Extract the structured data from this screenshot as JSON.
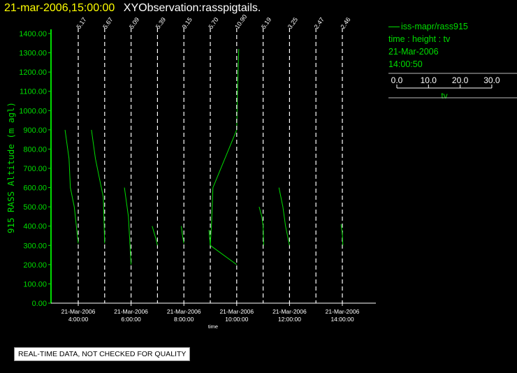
{
  "header": {
    "timestamp": "21-mar-2006,15:00:00",
    "observation": "XYObservation:rasspigtails."
  },
  "legend": {
    "series_name": "iss-mapr/rass915",
    "description": "time : height : tv",
    "date": "21-Mar-2006",
    "time": "14:00:50",
    "scale_ticks": [
      "0.0",
      "10.0",
      "20.0",
      "30.0"
    ],
    "scale_label": "tv"
  },
  "footer": {
    "disclaimer": "REAL-TIME DATA, NOT CHECKED FOR QUALITY"
  },
  "colors": {
    "data": "#00dd00",
    "axis": "#ffffff",
    "ylabel": "#00dd00",
    "header_time": "#ffff00"
  },
  "chart_data": {
    "type": "line",
    "ylabel": "915 RASS Altitude (m agl)",
    "xlabel": "time",
    "ylim": [
      0,
      1400
    ],
    "yticks": [
      "0.00",
      "100.00",
      "200.00",
      "300.00",
      "400.00",
      "500.00",
      "600.00",
      "700.00",
      "800.00",
      "900.00",
      "1000.00",
      "1100.00",
      "1200.00",
      "1300.00",
      "1400.00"
    ],
    "xlim_hours": [
      2.0,
      15.25
    ],
    "xticks": [
      {
        "hour": 4,
        "date": "21-Mar-2006",
        "time": "4:00:00"
      },
      {
        "hour": 6,
        "date": "21-Mar-2006",
        "time": "6:00:00"
      },
      {
        "hour": 8,
        "date": "21-Mar-2006",
        "time": "8:00:00"
      },
      {
        "hour": 10,
        "date": "21-Mar-2006",
        "time": "10:00:00"
      },
      {
        "hour": 12,
        "date": "21-Mar-2006",
        "time": "12:00:00"
      },
      {
        "hour": 14,
        "date": "21-Mar-2006",
        "time": "14:00:00"
      }
    ],
    "profiles": [
      {
        "hour": 4.0,
        "label": "5.17",
        "line": [
          [
            3.5,
            900
          ],
          [
            3.65,
            750
          ],
          [
            3.7,
            600
          ],
          [
            3.85,
            500
          ],
          [
            4.0,
            310
          ]
        ]
      },
      {
        "hour": 5.0,
        "label": "5.67",
        "line": [
          [
            4.5,
            900
          ],
          [
            4.65,
            750
          ],
          [
            4.8,
            650
          ],
          [
            4.95,
            550
          ],
          [
            5.0,
            310
          ]
        ]
      },
      {
        "hour": 6.0,
        "label": "5.09",
        "line": [
          [
            5.75,
            600
          ],
          [
            5.9,
            450
          ],
          [
            6.0,
            200
          ]
        ]
      },
      {
        "hour": 7.0,
        "label": "5.39",
        "line": [
          [
            6.8,
            400
          ],
          [
            6.95,
            330
          ],
          [
            7.0,
            300
          ]
        ]
      },
      {
        "hour": 8.0,
        "label": "9.15",
        "line": [
          [
            7.9,
            400
          ],
          [
            7.95,
            350
          ],
          [
            8.0,
            310
          ]
        ]
      },
      {
        "hour": 9.0,
        "label": "5.70",
        "line": [
          [
            8.95,
            380
          ],
          [
            9.0,
            300
          ],
          [
            9.05,
            420
          ],
          [
            9.1,
            600
          ],
          [
            10.0,
            900
          ],
          [
            10.02,
            1050
          ],
          [
            10.05,
            1200
          ],
          [
            10.08,
            1320
          ]
        ],
        "extra": [
          [
            9.0,
            300
          ],
          [
            10.0,
            200
          ]
        ]
      },
      {
        "hour": 10.0,
        "label": "10.90"
      },
      {
        "hour": 11.0,
        "label": "5.19",
        "line": [
          [
            10.85,
            500
          ],
          [
            10.95,
            450
          ],
          [
            11.0,
            400
          ],
          [
            11.02,
            300
          ]
        ]
      },
      {
        "hour": 12.0,
        "label": "3.25",
        "line": [
          [
            11.6,
            600
          ],
          [
            11.75,
            500
          ],
          [
            11.85,
            400
          ],
          [
            12.0,
            300
          ]
        ]
      },
      {
        "hour": 13.0,
        "label": "2.47"
      },
      {
        "hour": 14.0,
        "label": "2.46",
        "line": [
          [
            13.95,
            410
          ],
          [
            14.0,
            360
          ],
          [
            14.02,
            300
          ]
        ]
      }
    ],
    "grid": false
  }
}
